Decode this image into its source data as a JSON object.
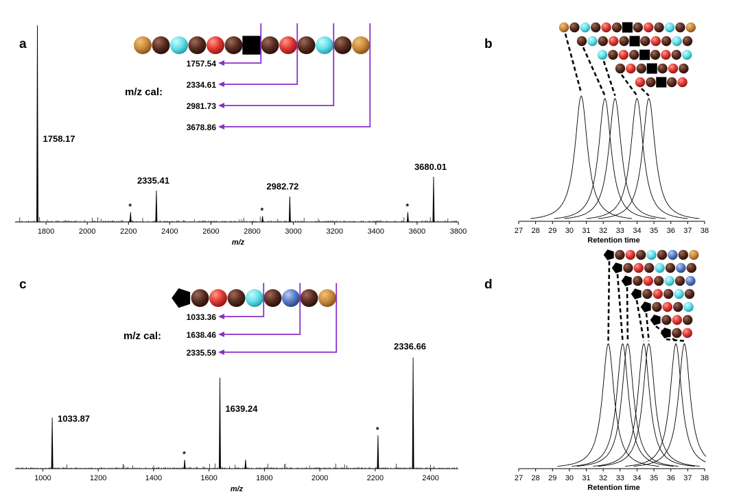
{
  "colors": {
    "gold": "#c8873a",
    "dark": "#5a2e22",
    "cyan": "#5fdde6",
    "red": "#e23a36",
    "blue": "#5b7fc8",
    "black": "#000000",
    "purple": "#8a2fc9"
  },
  "panels": {
    "a": {
      "letter": "a"
    },
    "b": {
      "letter": "b"
    },
    "c": {
      "letter": "c"
    },
    "d": {
      "letter": "d"
    }
  },
  "chart_data": [
    {
      "id": "a",
      "type": "line",
      "subtype": "mass-spectrum",
      "xlabel": "m/z",
      "xlim": [
        1650,
        3800
      ],
      "xticks": [
        1800,
        2000,
        2200,
        2400,
        2600,
        2800,
        3000,
        3200,
        3400,
        3600,
        3800
      ],
      "peaks": [
        {
          "x": 1758.17,
          "height": 1.0,
          "label": "1758.17",
          "star": false
        },
        {
          "x": 2335.41,
          "height": 0.16,
          "label": "2335.41",
          "star": false
        },
        {
          "x": 2982.72,
          "height": 0.13,
          "label": "2982.72",
          "star": false
        },
        {
          "x": 3680.01,
          "height": 0.23,
          "label": "3680.01",
          "star": false
        },
        {
          "x": 2210,
          "height": 0.05,
          "label": "",
          "star": true
        },
        {
          "x": 2850,
          "height": 0.03,
          "label": "",
          "star": true
        },
        {
          "x": 3555,
          "height": 0.05,
          "label": "",
          "star": true
        }
      ],
      "sequence": [
        "gold",
        "dark",
        "cyan",
        "dark",
        "red",
        "dark",
        "square",
        "dark",
        "red",
        "dark",
        "cyan",
        "dark",
        "gold"
      ],
      "calc_label": "m/z cal:",
      "calc_values": [
        "1757.54",
        "2334.61",
        "2981.73",
        "3678.86"
      ]
    },
    {
      "id": "b",
      "type": "line",
      "subtype": "chromatogram",
      "xlabel": "Retention time",
      "xlim": [
        27,
        38
      ],
      "xticks": [
        27,
        28,
        29,
        30,
        31,
        32,
        33,
        34,
        35,
        36,
        37,
        38
      ],
      "peaks": [
        {
          "center": 30.7,
          "width": 0.45,
          "height": 1.0
        },
        {
          "center": 32.1,
          "width": 0.45,
          "height": 0.98
        },
        {
          "center": 32.7,
          "width": 0.45,
          "height": 0.98
        },
        {
          "center": 34.0,
          "width": 0.45,
          "height": 0.98
        },
        {
          "center": 34.7,
          "width": 0.45,
          "height": 0.98
        }
      ],
      "sequences": [
        [
          "gold",
          "dark",
          "cyan",
          "dark",
          "red",
          "dark",
          "square",
          "dark",
          "red",
          "dark",
          "cyan",
          "dark",
          "gold"
        ],
        [
          "dark",
          "cyan",
          "dark",
          "red",
          "dark",
          "square",
          "dark",
          "red",
          "dark",
          "cyan",
          "dark"
        ],
        [
          "cyan",
          "dark",
          "red",
          "dark",
          "square",
          "dark",
          "red",
          "dark",
          "cyan"
        ],
        [
          "dark",
          "red",
          "dark",
          "square",
          "dark",
          "red",
          "dark"
        ],
        [
          "red",
          "dark",
          "square",
          "dark",
          "red"
        ]
      ]
    },
    {
      "id": "c",
      "type": "line",
      "subtype": "mass-spectrum",
      "xlabel": "m/z",
      "xlim": [
        900,
        2500
      ],
      "xticks": [
        1000,
        1200,
        1400,
        1600,
        1800,
        2000,
        2200,
        2400
      ],
      "peaks": [
        {
          "x": 1033.87,
          "height": 0.46,
          "label": "1033.87",
          "star": false
        },
        {
          "x": 1639.24,
          "height": 0.82,
          "label": "1639.24",
          "star": false
        },
        {
          "x": 2336.66,
          "height": 1.0,
          "label": "2336.66",
          "star": false
        },
        {
          "x": 1512,
          "height": 0.08,
          "label": "",
          "star": true
        },
        {
          "x": 2210,
          "height": 0.3,
          "label": "",
          "star": true
        },
        {
          "x": 1732,
          "height": 0.08,
          "label": "",
          "star": false
        }
      ],
      "sequence": [
        "pentagon",
        "dark",
        "red",
        "dark",
        "cyan",
        "dark",
        "blue",
        "dark",
        "gold"
      ],
      "calc_label": "m/z cal:",
      "calc_values": [
        "1033.36",
        "1638.46",
        "2335.59"
      ]
    },
    {
      "id": "d",
      "type": "line",
      "subtype": "chromatogram",
      "xlabel": "Retention time",
      "xlim": [
        27,
        38
      ],
      "xticks": [
        27,
        28,
        29,
        30,
        31,
        32,
        33,
        34,
        35,
        36,
        37,
        38
      ],
      "peaks": [
        {
          "center": 32.3,
          "width": 0.42,
          "height": 0.94
        },
        {
          "center": 33.15,
          "width": 0.42,
          "height": 0.94
        },
        {
          "center": 33.45,
          "width": 0.42,
          "height": 0.94
        },
        {
          "center": 34.4,
          "width": 0.42,
          "height": 0.94
        },
        {
          "center": 34.7,
          "width": 0.42,
          "height": 0.94
        },
        {
          "center": 36.3,
          "width": 0.42,
          "height": 0.94
        },
        {
          "center": 36.8,
          "width": 0.42,
          "height": 0.94
        }
      ],
      "sequences": [
        [
          "pentagon",
          "dark",
          "red",
          "dark",
          "cyan",
          "dark",
          "blue",
          "dark",
          "gold"
        ],
        [
          "pentagon",
          "dark",
          "red",
          "dark",
          "cyan",
          "dark",
          "blue",
          "dark"
        ],
        [
          "pentagon",
          "dark",
          "red",
          "dark",
          "cyan",
          "dark",
          "blue"
        ],
        [
          "pentagon",
          "dark",
          "red",
          "dark",
          "cyan",
          "dark"
        ],
        [
          "pentagon",
          "dark",
          "red",
          "dark",
          "cyan"
        ],
        [
          "pentagon",
          "dark",
          "red",
          "dark"
        ],
        [
          "pentagon",
          "dark",
          "red"
        ]
      ]
    }
  ]
}
